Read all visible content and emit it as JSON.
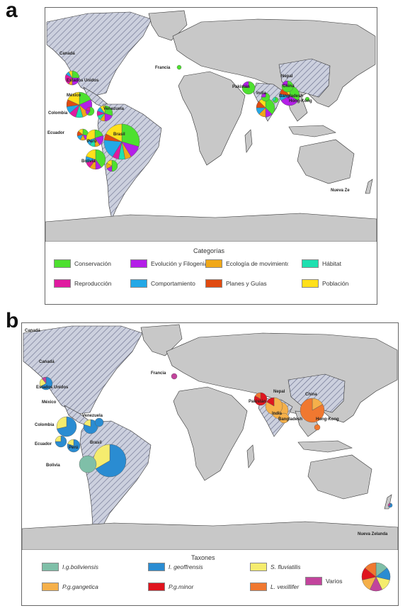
{
  "panel_a": {
    "letter": "a",
    "legend_title": "Categorías",
    "legend": [
      {
        "label": "Conservación",
        "color": "#4de02f"
      },
      {
        "label": "Evolución y Filogenia",
        "color": "#b41ee8"
      },
      {
        "label": "Ecología de movimiento",
        "color": "#f0a818"
      },
      {
        "label": "Hábitat",
        "color": "#1ee0b0"
      },
      {
        "label": "Reproducción",
        "color": "#e01aa0"
      },
      {
        "label": "Comportamiento",
        "color": "#23a8e6"
      },
      {
        "label": "Planes y Guías",
        "color": "#e04a10"
      },
      {
        "label": "Población",
        "color": "#ffe01a"
      }
    ],
    "countries": [
      {
        "name": "Canadá"
      },
      {
        "name": "Estados Unidos"
      },
      {
        "name": "México"
      },
      {
        "name": "Colombia"
      },
      {
        "name": "Venezuela"
      },
      {
        "name": "Ecuador"
      },
      {
        "name": "Perú"
      },
      {
        "name": "Brasil"
      },
      {
        "name": "Bolivia"
      },
      {
        "name": "Francia"
      },
      {
        "name": "Nepal"
      },
      {
        "name": "China"
      },
      {
        "name": "Pakistán"
      },
      {
        "name": "India"
      },
      {
        "name": "Bangladesh"
      },
      {
        "name": "Hong-Kong"
      },
      {
        "name": "Nueva Ze"
      }
    ]
  },
  "panel_b": {
    "letter": "b",
    "legend_title": "Taxones",
    "legend": [
      {
        "label": "I.g.boliviensis",
        "color": "#7fbfa8",
        "italic": true
      },
      {
        "label": "I. geoffrensis",
        "color": "#2a8cd2",
        "italic": true
      },
      {
        "label": "S. fluviatilis",
        "color": "#f5ec6e",
        "italic": true
      },
      {
        "label": "Varios",
        "color": "#c2449c",
        "italic": false
      },
      {
        "label": "P.g.gangetica",
        "color": "#f5b04a",
        "italic": true
      },
      {
        "label": "P.g.minor",
        "color": "#e0141e",
        "italic": true
      },
      {
        "label": "L. vexillifer",
        "color": "#f07830",
        "italic": true
      }
    ],
    "countries": [
      {
        "name": "Canadá"
      },
      {
        "name": "Canadá"
      },
      {
        "name": "Estados Unidos"
      },
      {
        "name": "México"
      },
      {
        "name": "Colombia"
      },
      {
        "name": "Venezuela"
      },
      {
        "name": "Ecuador"
      },
      {
        "name": "Perú"
      },
      {
        "name": "Brasil"
      },
      {
        "name": "Bolivia"
      },
      {
        "name": "Francia"
      },
      {
        "name": "Nepal"
      },
      {
        "name": "China"
      },
      {
        "name": "Pakistán"
      },
      {
        "name": "India"
      },
      {
        "name": "Bangladesh"
      },
      {
        "name": "Hong-Kong"
      },
      {
        "name": "Nueva Zelanda"
      }
    ]
  }
}
